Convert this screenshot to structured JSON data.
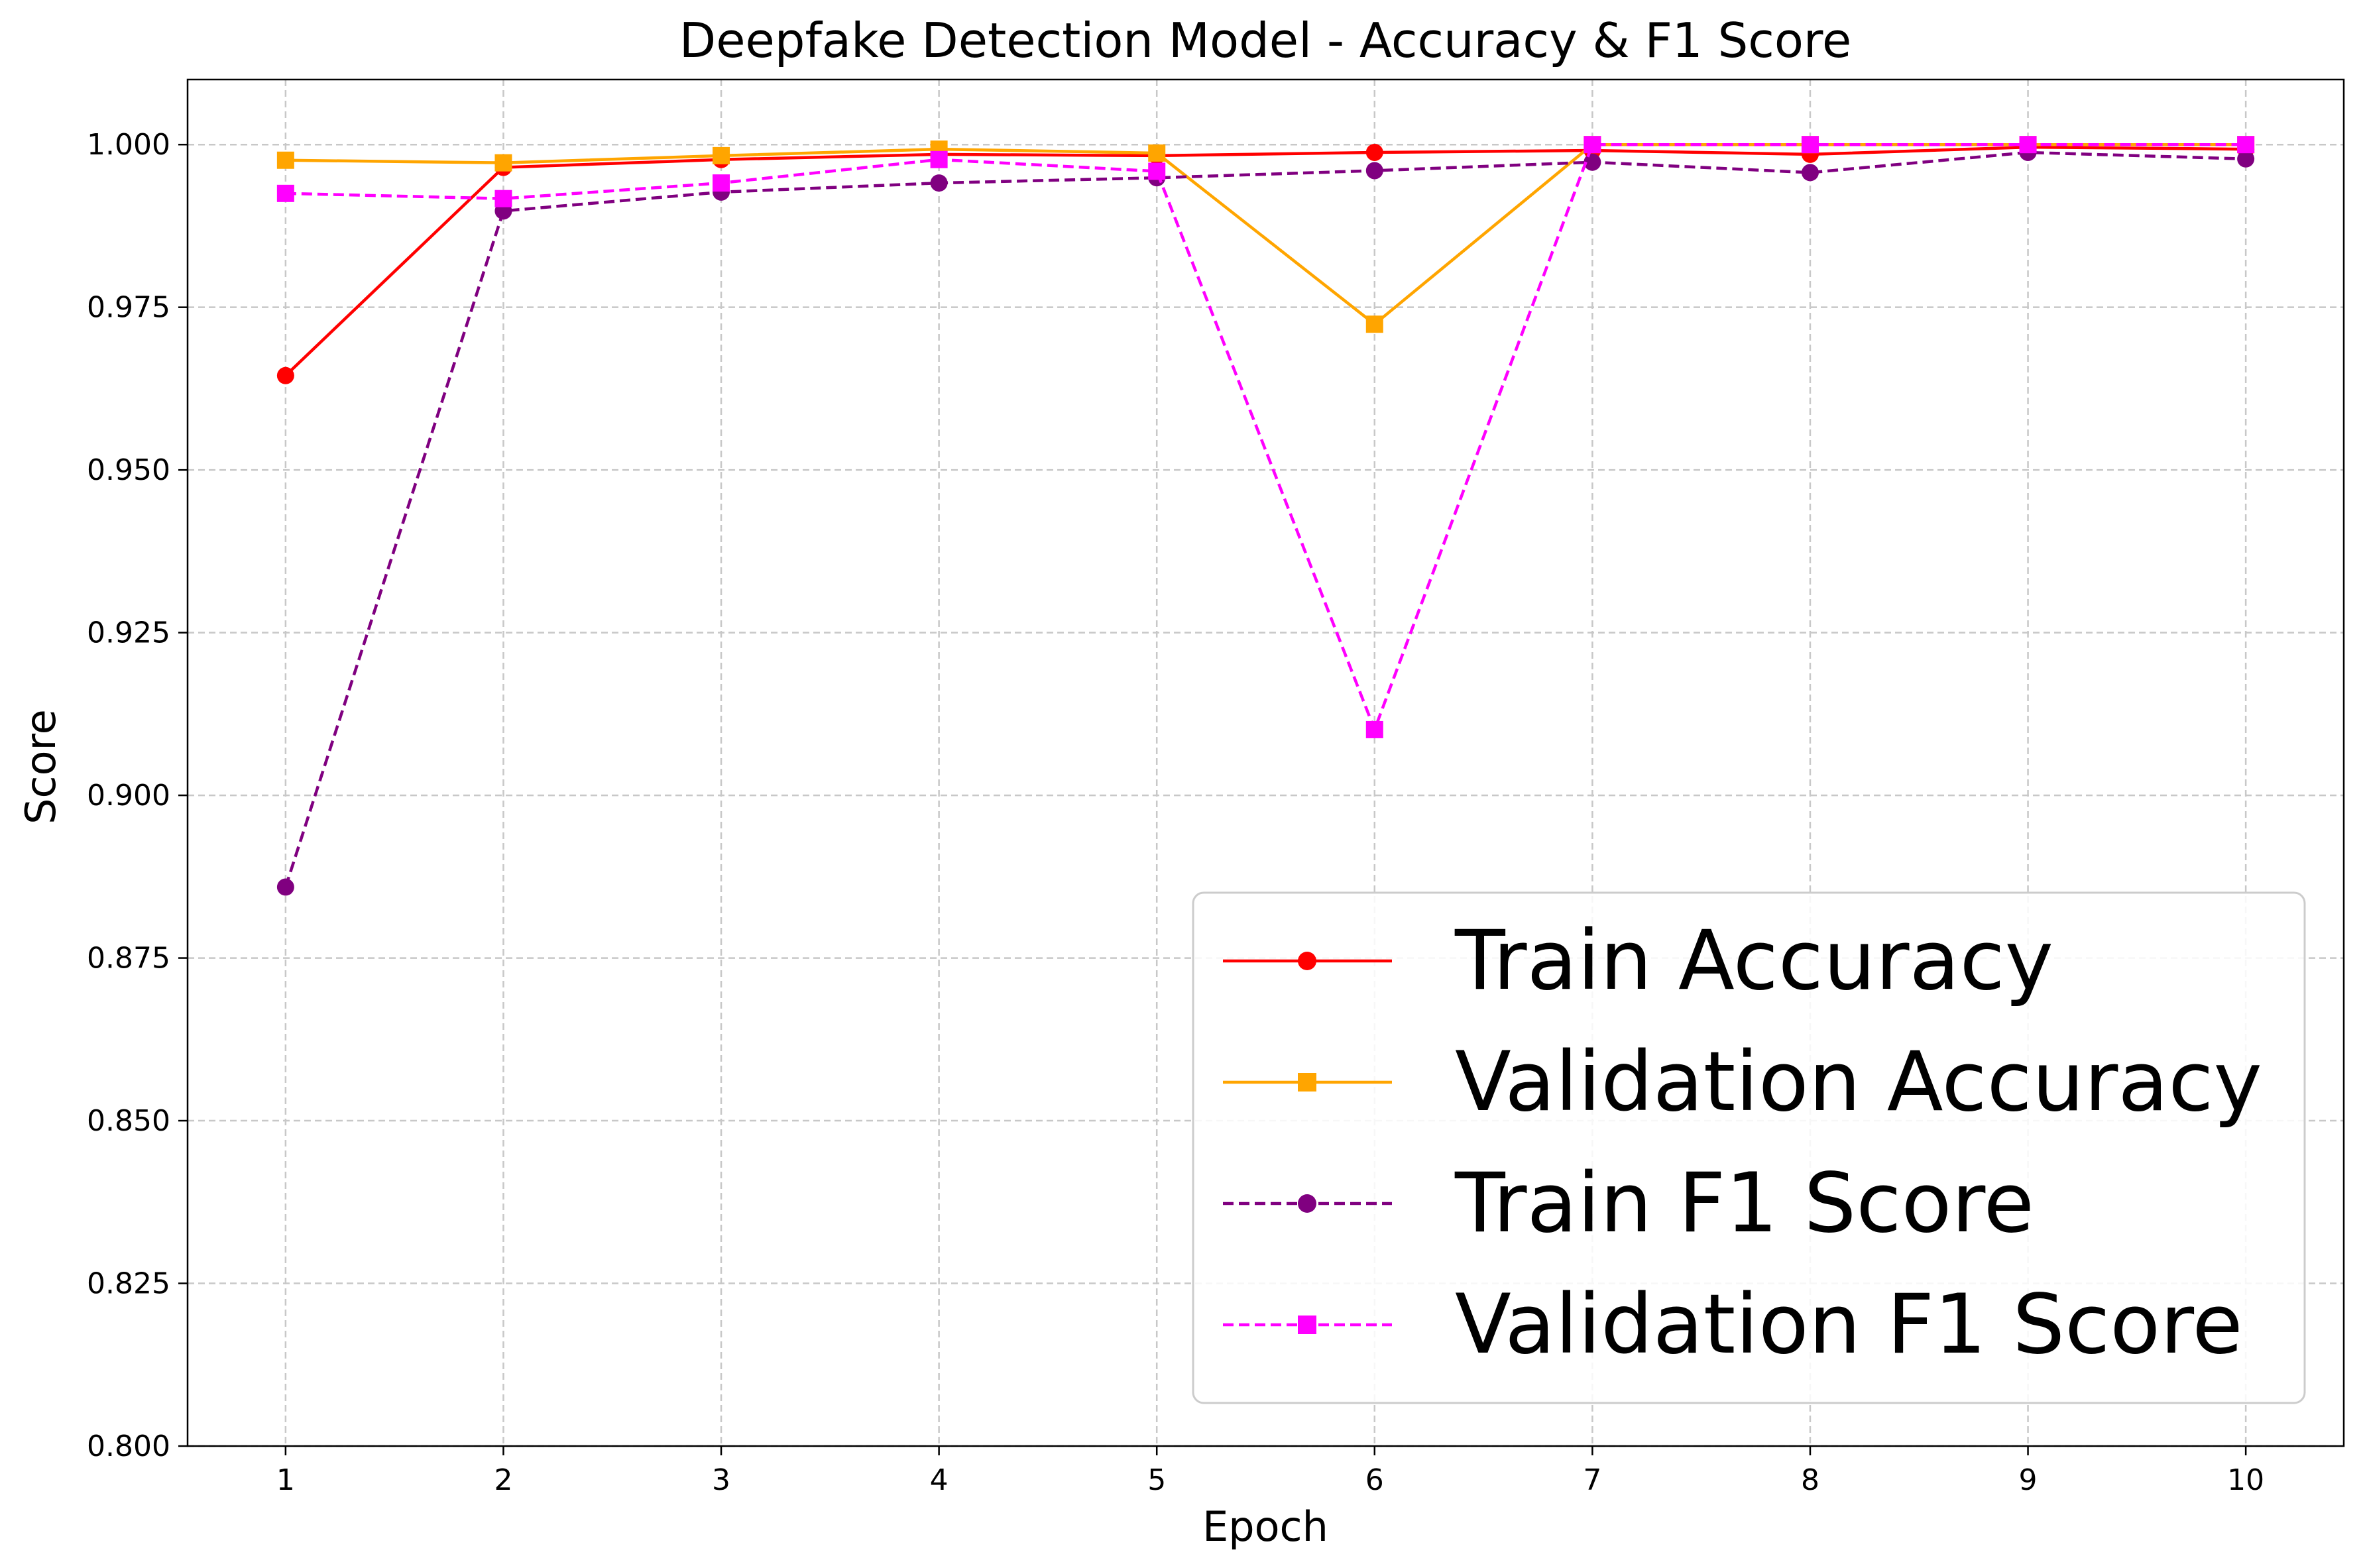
{
  "chart_data": {
    "type": "line",
    "title": "Deepfake Detection Model - Accuracy & F1 Score",
    "xlabel": "Epoch",
    "ylabel": "Score",
    "x": [
      1,
      2,
      3,
      4,
      5,
      6,
      7,
      8,
      9,
      10
    ],
    "xlim": [
      0.55,
      10.45
    ],
    "ylim": [
      0.8,
      1.01
    ],
    "xticks": [
      1,
      2,
      3,
      4,
      5,
      6,
      7,
      8,
      9,
      10
    ],
    "yticks": [
      0.8,
      0.825,
      0.85,
      0.875,
      0.9,
      0.925,
      0.95,
      0.975,
      1.0
    ],
    "ytick_labels": [
      "0.800",
      "0.825",
      "0.850",
      "0.875",
      "0.900",
      "0.925",
      "0.950",
      "0.975",
      "1.000"
    ],
    "grid": true,
    "legend_position": "lower-right",
    "series": [
      {
        "name": "Train Accuracy",
        "color": "#ff0000",
        "dash": "solid",
        "marker": "circle",
        "values": [
          0.9645,
          0.9965,
          0.9977,
          0.9985,
          0.9983,
          0.9988,
          0.9991,
          0.9985,
          0.9996,
          0.9993
        ]
      },
      {
        "name": "Validation Accuracy",
        "color": "#ffa500",
        "dash": "solid",
        "marker": "square",
        "values": [
          0.9976,
          0.9972,
          0.9983,
          0.9993,
          0.9987,
          0.9724,
          1.0,
          1.0,
          1.0,
          1.0
        ]
      },
      {
        "name": "Train F1 Score",
        "color": "#800080",
        "dash": "dashed",
        "marker": "circle",
        "values": [
          0.8859,
          0.9898,
          0.9927,
          0.9941,
          0.9949,
          0.996,
          0.9973,
          0.9957,
          0.9988,
          0.9978
        ]
      },
      {
        "name": "Validation F1 Score",
        "color": "#ff00ff",
        "dash": "dashed",
        "marker": "square",
        "values": [
          0.9925,
          0.9917,
          0.9941,
          0.9977,
          0.9959,
          0.9101,
          1.0,
          1.0,
          1.0,
          1.0
        ]
      }
    ]
  }
}
